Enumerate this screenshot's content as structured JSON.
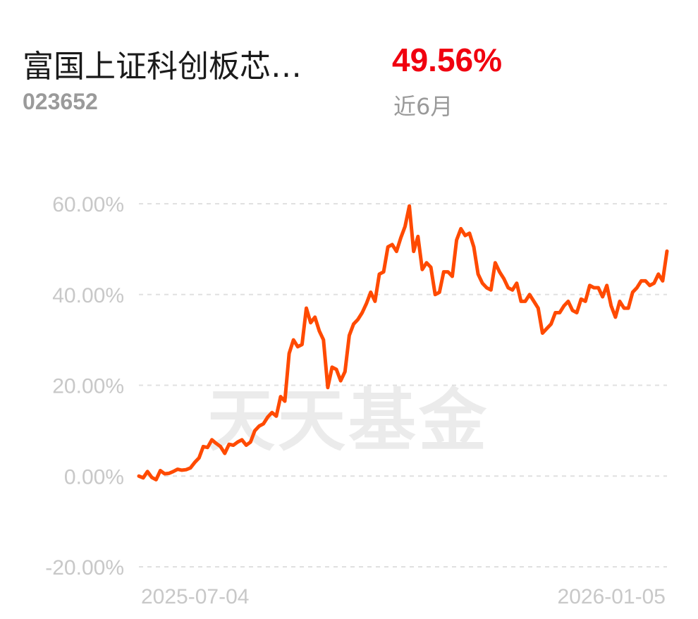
{
  "header": {
    "fund_name": "富国上证科创板芯…",
    "fund_code": "023652",
    "return_value": "49.56%",
    "period": "近6月"
  },
  "watermark": "天天基金",
  "colors": {
    "line": "#ff4a00",
    "return_value": "#f0000f",
    "grid": "#e0e0e0",
    "axis_text": "#c8c8c8"
  },
  "chart_data": {
    "type": "line",
    "title": "",
    "xlabel": "",
    "ylabel": "",
    "ylim": [
      -20,
      60
    ],
    "yticks": [
      60,
      40,
      20,
      0,
      -20
    ],
    "ytick_labels": [
      "60.00%",
      "40.00%",
      "20.00%",
      "0.00%",
      "-20.00%"
    ],
    "x_start_label": "2025-07-04",
    "x_end_label": "2026-01-05",
    "grid": true,
    "series": [
      {
        "values": [
          0,
          -0.4,
          1.0,
          -0.3,
          -0.8,
          1.2,
          0.5,
          0.6,
          1.0,
          1.5,
          1.3,
          1.4,
          1.8,
          3.0,
          4.0,
          6.5,
          6.3,
          8.0,
          7.2,
          6.5,
          5.0,
          7.0,
          6.8,
          7.5,
          8.0,
          6.8,
          7.5,
          10.0,
          11.0,
          11.5,
          13.0,
          14.0,
          13.2,
          17.5,
          16.5,
          27.0,
          30.0,
          28.5,
          29.0,
          37.0,
          33.8,
          35.0,
          32.0,
          30.0,
          19.5,
          24.0,
          23.5,
          21.0,
          23.0,
          31.0,
          33.5,
          34.5,
          36.0,
          38.0,
          40.5,
          38.5,
          44.5,
          45.0,
          50.5,
          51.0,
          49.5,
          52.5,
          55.0,
          59.5,
          49.5,
          52.8,
          45.5,
          47.0,
          46.0,
          40.0,
          40.5,
          45.0,
          45.0,
          44.0,
          52.0,
          54.5,
          53.0,
          53.5,
          50.5,
          44.5,
          42.5,
          41.5,
          41.0,
          47.0,
          45.0,
          43.5,
          41.5,
          41.0,
          42.5,
          38.5,
          38.5,
          40.0,
          38.5,
          37.0,
          31.5,
          32.5,
          33.5,
          36.0,
          36.0,
          37.5,
          38.5,
          36.5,
          36.0,
          39.0,
          38.5,
          42.0,
          41.5,
          41.5,
          39.5,
          42.0,
          37.5,
          35.0,
          38.5,
          37.0,
          37.0,
          40.5,
          41.5,
          43.0,
          43.0,
          42.0,
          42.5,
          44.5,
          43.0,
          49.56
        ]
      }
    ]
  }
}
